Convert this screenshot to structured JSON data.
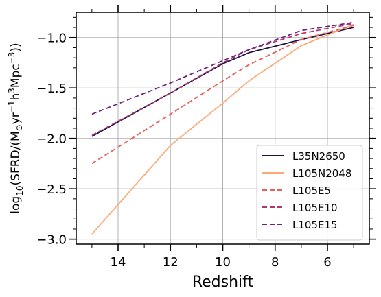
{
  "chart_data": {
    "type": "line",
    "title": "",
    "xlabel": "Redshift",
    "ylabel_parts": {
      "pre": "log",
      "sub": "10",
      "open": "(SFRD/(M",
      "sun": "⊙",
      "yr": "yr",
      "yr_exp": "−1",
      "h": "h",
      "h_exp": "3",
      "mpc": "Mpc",
      "mpc_exp": "−3",
      "close": "))"
    },
    "xlim": [
      15.6,
      4.4
    ],
    "ylim": [
      -3.05,
      -0.75
    ],
    "x_ticks": [
      14,
      12,
      10,
      8,
      6
    ],
    "y_ticks": [
      -3.0,
      -2.5,
      -2.0,
      -1.5,
      -1.0
    ],
    "x_tick_labels": [
      "14",
      "12",
      "10",
      "8",
      "6"
    ],
    "y_tick_labels": [
      "−3.0",
      "−2.5",
      "−2.0",
      "−1.5",
      "−1.0"
    ],
    "grid": true,
    "legend_position": "lower-right",
    "series": [
      {
        "name": "L35N2650",
        "color": "#1c1044",
        "style": "solid",
        "x": [
          15,
          12,
          10,
          9,
          7,
          5
        ],
        "y": [
          -1.98,
          -1.55,
          -1.26,
          -1.15,
          -1.02,
          -0.9
        ]
      },
      {
        "name": "L105N2048",
        "color": "#fcab78",
        "style": "solid",
        "x": [
          15,
          12,
          10,
          9,
          7,
          5
        ],
        "y": [
          -2.95,
          -2.07,
          -1.65,
          -1.43,
          -1.08,
          -0.87
        ]
      },
      {
        "name": "L105E5",
        "color": "#e8605b",
        "style": "dashed",
        "x": [
          15,
          12,
          10,
          9,
          7,
          5
        ],
        "y": [
          -2.25,
          -1.76,
          -1.43,
          -1.27,
          -1.02,
          -0.88
        ]
      },
      {
        "name": "L105E10",
        "color": "#b1386f",
        "style": "dashed",
        "x": [
          15,
          12,
          10,
          9,
          7,
          5
        ],
        "y": [
          -1.97,
          -1.55,
          -1.25,
          -1.12,
          -0.96,
          -0.86
        ]
      },
      {
        "name": "L105E15",
        "color": "#6c2380",
        "style": "dashed",
        "x": [
          15,
          12,
          10,
          9,
          7,
          5
        ],
        "y": [
          -1.76,
          -1.45,
          -1.23,
          -1.12,
          -0.93,
          -0.85
        ]
      }
    ]
  }
}
